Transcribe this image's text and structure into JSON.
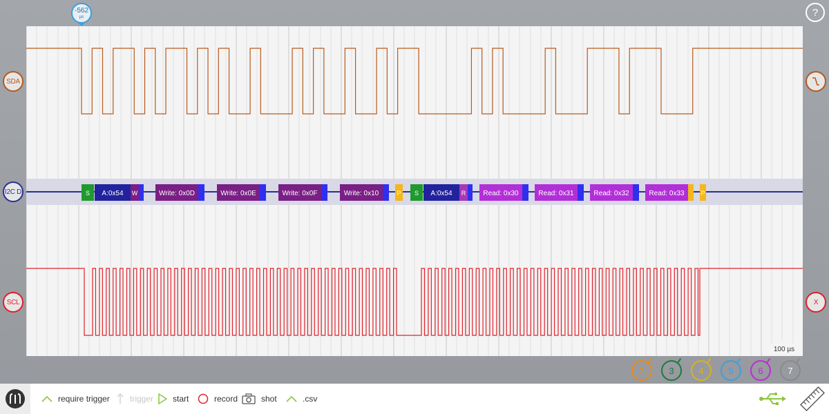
{
  "cursor": {
    "value": "-562",
    "unit": "µs"
  },
  "help_label": "?",
  "channels": {
    "sda": {
      "label": "SDA",
      "color": "#b65a1e"
    },
    "i2c": {
      "label": "I2C D",
      "color": "#2b2f8f"
    },
    "scl": {
      "label": "SCL",
      "color": "#e0202a"
    },
    "x_label": "X"
  },
  "scale_label": "100 µs",
  "decoded_frames": [
    {
      "label": "S",
      "color": "#1e9a2e"
    },
    {
      "label": "A:0x54",
      "color": "#22229e"
    },
    {
      "label": "W",
      "color": "#7a1f85"
    },
    {
      "label": "",
      "color": "#2f2ff0"
    },
    {
      "label": "Write: 0x0D",
      "color": "#7a1f85"
    },
    {
      "label": "",
      "color": "#2f2ff0"
    },
    {
      "label": "Write: 0x0E",
      "color": "#7a1f85"
    },
    {
      "label": "",
      "color": "#2f2ff0"
    },
    {
      "label": "Write: 0x0F",
      "color": "#7a1f85"
    },
    {
      "label": "",
      "color": "#2f2ff0"
    },
    {
      "label": "Write: 0x10",
      "color": "#7a1f85"
    },
    {
      "label": "",
      "color": "#2f2ff0"
    },
    {
      "label": "P",
      "color": "#f4b81c"
    },
    {
      "label": "S",
      "color": "#1e9a2e"
    },
    {
      "label": "A:0x54",
      "color": "#22229e"
    },
    {
      "label": "R",
      "color": "#a638b8"
    },
    {
      "label": "",
      "color": "#2f2ff0"
    },
    {
      "label": "Read: 0x30",
      "color": "#b22fd8"
    },
    {
      "label": "",
      "color": "#2f2ff0"
    },
    {
      "label": "Read: 0x31",
      "color": "#b22fd8"
    },
    {
      "label": "",
      "color": "#2f2ff0"
    },
    {
      "label": "Read: 0x32",
      "color": "#b22fd8"
    },
    {
      "label": "",
      "color": "#2f2ff0"
    },
    {
      "label": "Read: 0x33",
      "color": "#b22fd8"
    },
    {
      "label": "",
      "color": "#f4b81c"
    },
    {
      "label": "P",
      "color": "#f4b81c"
    }
  ],
  "sda_bits": "01011010110101001000101001001011000001010000100011101110001",
  "extra_channels": [
    {
      "label": "2",
      "color": "#e88a1a"
    },
    {
      "label": "3",
      "color": "#1e7a3a"
    },
    {
      "label": "4",
      "color": "#d8b21e"
    },
    {
      "label": "5",
      "color": "#3aa0e0"
    },
    {
      "label": "6",
      "color": "#c02ad8"
    },
    {
      "label": "7",
      "color": "#8a8a8a"
    }
  ],
  "toolbar": {
    "require_trigger": "require trigger",
    "trigger": "trigger",
    "start": "start",
    "record": "record",
    "shot": "shot",
    "csv": ".csv"
  },
  "colors": {
    "accent": "#8cc63f",
    "record": "#e0202a",
    "usb": "#8cc63f"
  }
}
